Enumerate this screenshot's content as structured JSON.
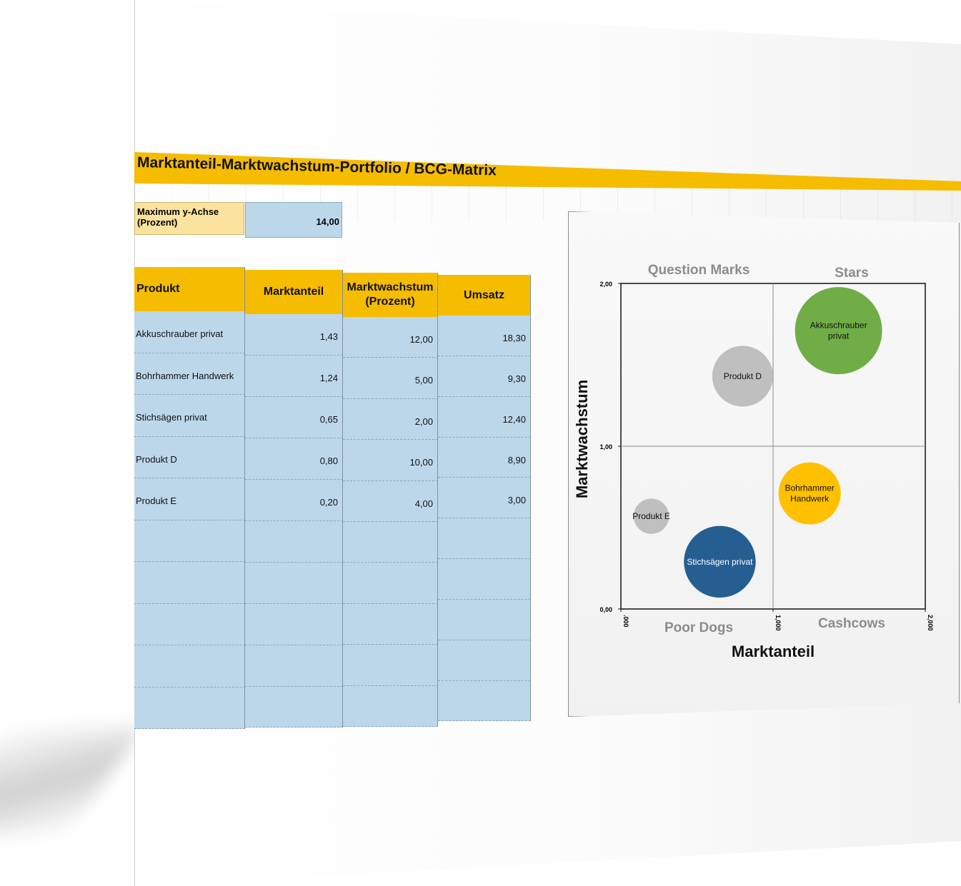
{
  "title": "Marktanteil-Marktwachstum-Portfolio / BCG-Matrix",
  "max_y": {
    "label_line1": "Maximum y-Achse",
    "label_line2": "(Prozent)",
    "value": "14,00"
  },
  "table": {
    "headers": {
      "produkt": "Produkt",
      "marktanteil": "Marktanteil",
      "wachstum_line1": "Marktwachstum",
      "wachstum_line2": "(Prozent)",
      "umsatz": "Umsatz"
    },
    "rows": [
      {
        "produkt": "Akkuschrauber privat",
        "marktanteil": "1,43",
        "wachstum": "12,00",
        "umsatz": "18,30"
      },
      {
        "produkt": "Bohrhammer Handwerk",
        "marktanteil": "1,24",
        "wachstum": "5,00",
        "umsatz": "9,30"
      },
      {
        "produkt": "Stichsägen privat",
        "marktanteil": "0,65",
        "wachstum": "2,00",
        "umsatz": "12,40"
      },
      {
        "produkt": "Produkt D",
        "marktanteil": "0,80",
        "wachstum": "10,00",
        "umsatz": "8,90"
      },
      {
        "produkt": "Produkt E",
        "marktanteil": "0,20",
        "wachstum": "4,00",
        "umsatz": "3,00"
      }
    ],
    "empty_rows": 5
  },
  "chart_data": {
    "type": "scatter",
    "title": "",
    "xlabel": "Marktanteil",
    "ylabel": "Marktwachstum",
    "xlim": [
      0,
      2
    ],
    "ylim": [
      0,
      2
    ],
    "x_ticks": [
      ".000",
      "1,000",
      "2,000"
    ],
    "y_ticks": [
      "0,00",
      "1,00",
      "2,00"
    ],
    "quadrants": {
      "top_left": "Question Marks",
      "top_right": "Stars",
      "bottom_left": "Poor Dogs",
      "bottom_right": "Cashcows"
    },
    "bubbles": [
      {
        "label_lines": [
          "Akkuschrauber",
          "privat"
        ],
        "x": 1.43,
        "y": 1.71,
        "size": 18.3,
        "color": "#70ad47",
        "text_color": "#111111"
      },
      {
        "label_lines": [
          "Bohrhammer",
          "Handwerk"
        ],
        "x": 1.24,
        "y": 0.71,
        "size": 9.3,
        "color": "#ffc000",
        "text_color": "#111111"
      },
      {
        "label_lines": [
          "Stichsägen privat"
        ],
        "x": 0.65,
        "y": 0.29,
        "size": 12.4,
        "color": "#255e91",
        "text_color": "#ffffff"
      },
      {
        "label_lines": [
          "Produkt D"
        ],
        "x": 0.8,
        "y": 1.43,
        "size": 8.9,
        "color": "#bfbfbf",
        "text_color": "#111111"
      },
      {
        "label_lines": [
          "Produkt E"
        ],
        "x": 0.2,
        "y": 0.57,
        "size": 3.0,
        "color": "#bfbfbf",
        "text_color": "#111111"
      }
    ]
  }
}
